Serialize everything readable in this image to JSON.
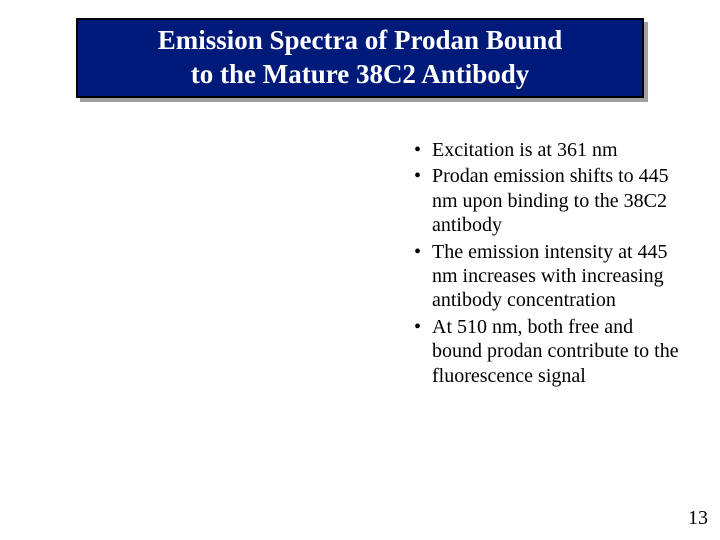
{
  "title": {
    "line1": "Emission Spectra of Prodan Bound",
    "line2": "to the Mature 38C2 Antibody"
  },
  "bullets": [
    "Excitation is at 361 nm",
    "Prodan emission shifts to 445 nm upon binding to the 38C2 antibody",
    "The emission intensity at 445 nm increases with increasing antibody concentration",
    "At 510 nm, both free and bound prodan contribute to the fluorescence signal"
  ],
  "page_number": "13",
  "colors": {
    "title_bg": "#001a7a",
    "title_text": "#ffffff",
    "title_border": "#000000",
    "shadow": "#a0a0a0",
    "body_text": "#000000",
    "background": "#ffffff"
  }
}
